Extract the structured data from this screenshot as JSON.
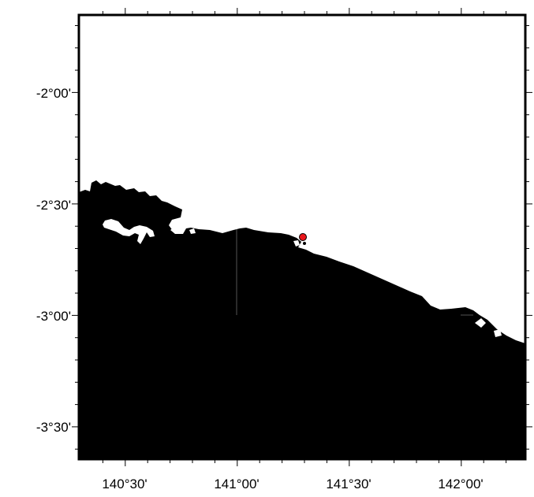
{
  "map": {
    "lon_labels": [
      "140°30'",
      "141°00'",
      "141°30'",
      "142°00'"
    ],
    "lat_labels": [
      "-2°00'",
      "-2°30'",
      "-3°00'",
      "-3°30'"
    ],
    "land_color": "#000000",
    "water_color": "#ffffff",
    "marker": {
      "name": "event-location-marker",
      "color": "#e8161b",
      "outline": "#000000"
    }
  }
}
